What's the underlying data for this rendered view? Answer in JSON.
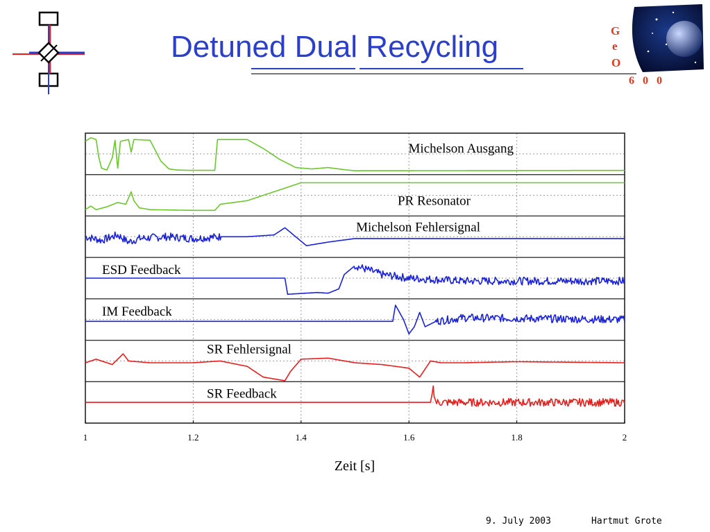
{
  "slide": {
    "title": "Detuned Dual Recycling",
    "footer_date": "9. July 2003",
    "footer_author": "Hartmut Grote",
    "colors": {
      "title": "#2b3fc8",
      "green": "#6cc62e",
      "blue": "#1a22d8",
      "red": "#e51e1e"
    }
  },
  "logo_geo": {
    "letters": [
      "G",
      "e",
      "O"
    ],
    "number": "6 0 0"
  },
  "logo_left": {
    "glyphs": [
      "",
      ""
    ]
  },
  "chart_data": {
    "type": "line",
    "xlabel": "Zeit [s]",
    "xlim": [
      1,
      2
    ],
    "x_ticks": [
      "1",
      "1.2",
      "1.4",
      "1.6",
      "1.8",
      "2"
    ],
    "grid": true,
    "series": [
      {
        "name": "Michelson Ausgang",
        "color": "#6cc62e",
        "label_anchor": "right",
        "points": [
          [
            1,
            0.85
          ],
          [
            1.01,
            0.95
          ],
          [
            1.02,
            0.9
          ],
          [
            1.025,
            0.4
          ],
          [
            1.03,
            0.1
          ],
          [
            1.04,
            0.05
          ],
          [
            1.05,
            0.4
          ],
          [
            1.055,
            0.88
          ],
          [
            1.06,
            0.1
          ],
          [
            1.065,
            0.85
          ],
          [
            1.08,
            0.9
          ],
          [
            1.085,
            0.55
          ],
          [
            1.09,
            0.9
          ],
          [
            1.12,
            0.88
          ],
          [
            1.14,
            0.3
          ],
          [
            1.155,
            0.08
          ],
          [
            1.17,
            0.05
          ],
          [
            1.2,
            0.04
          ],
          [
            1.24,
            0.04
          ],
          [
            1.245,
            0.9
          ],
          [
            1.3,
            0.9
          ],
          [
            1.33,
            0.65
          ],
          [
            1.36,
            0.35
          ],
          [
            1.39,
            0.12
          ],
          [
            1.42,
            0.08
          ],
          [
            1.45,
            0.12
          ],
          [
            1.48,
            0.06
          ],
          [
            1.5,
            0.03
          ],
          [
            2,
            0.04
          ]
        ]
      },
      {
        "name": "PR Resonator",
        "color": "#6cc62e",
        "label_anchor": "right",
        "points": [
          [
            1,
            0.1
          ],
          [
            1.01,
            0.2
          ],
          [
            1.02,
            0.1
          ],
          [
            1.04,
            0.18
          ],
          [
            1.06,
            0.3
          ],
          [
            1.075,
            0.25
          ],
          [
            1.085,
            0.6
          ],
          [
            1.09,
            0.35
          ],
          [
            1.1,
            0.15
          ],
          [
            1.12,
            0.1
          ],
          [
            1.2,
            0.08
          ],
          [
            1.24,
            0.08
          ],
          [
            1.25,
            0.25
          ],
          [
            1.3,
            0.35
          ],
          [
            1.35,
            0.6
          ],
          [
            1.38,
            0.75
          ],
          [
            1.4,
            0.85
          ],
          [
            1.45,
            0.85
          ],
          [
            2,
            0.85
          ]
        ]
      },
      {
        "name": "Michelson Fehlersignal",
        "color": "#1a22d8",
        "label_anchor": "right",
        "noisy_until": 1.25,
        "points": [
          [
            1,
            0.5
          ],
          [
            1.03,
            0.4
          ],
          [
            1.06,
            0.55
          ],
          [
            1.08,
            0.35
          ],
          [
            1.1,
            0.45
          ],
          [
            1.15,
            0.5
          ],
          [
            1.2,
            0.45
          ],
          [
            1.25,
            0.5
          ],
          [
            1.3,
            0.5
          ],
          [
            1.35,
            0.55
          ],
          [
            1.37,
            0.75
          ],
          [
            1.39,
            0.5
          ],
          [
            1.41,
            0.25
          ],
          [
            1.45,
            0.35
          ],
          [
            1.5,
            0.45
          ],
          [
            1.55,
            0.45
          ],
          [
            2,
            0.45
          ]
        ]
      },
      {
        "name": "ESD Feedback",
        "color": "#1a22d8",
        "label_anchor": "left",
        "noisy_from": 1.5,
        "points": [
          [
            1,
            0.5
          ],
          [
            1.37,
            0.5
          ],
          [
            1.375,
            0.05
          ],
          [
            1.43,
            0.1
          ],
          [
            1.45,
            0.08
          ],
          [
            1.47,
            0.2
          ],
          [
            1.48,
            0.6
          ],
          [
            1.5,
            0.85
          ],
          [
            1.52,
            0.75
          ],
          [
            1.55,
            0.6
          ],
          [
            1.6,
            0.5
          ],
          [
            1.7,
            0.42
          ],
          [
            2,
            0.42
          ]
        ]
      },
      {
        "name": "IM Feedback",
        "color": "#1a22d8",
        "label_anchor": "left",
        "noisy_from": 1.65,
        "points": [
          [
            1,
            0.45
          ],
          [
            1.57,
            0.45
          ],
          [
            1.575,
            0.9
          ],
          [
            1.59,
            0.5
          ],
          [
            1.6,
            0.1
          ],
          [
            1.61,
            0.3
          ],
          [
            1.62,
            0.7
          ],
          [
            1.63,
            0.3
          ],
          [
            1.65,
            0.45
          ],
          [
            1.7,
            0.55
          ],
          [
            2,
            0.5
          ]
        ]
      },
      {
        "name": "SR Fehlersignal",
        "color": "#e51e1e",
        "label_anchor": "left",
        "points": [
          [
            1,
            0.45
          ],
          [
            1.02,
            0.55
          ],
          [
            1.05,
            0.4
          ],
          [
            1.07,
            0.7
          ],
          [
            1.08,
            0.5
          ],
          [
            1.12,
            0.45
          ],
          [
            1.2,
            0.45
          ],
          [
            1.25,
            0.5
          ],
          [
            1.3,
            0.35
          ],
          [
            1.33,
            0.05
          ],
          [
            1.37,
            -0.05
          ],
          [
            1.38,
            0.2
          ],
          [
            1.4,
            0.55
          ],
          [
            1.45,
            0.58
          ],
          [
            1.5,
            0.45
          ],
          [
            1.55,
            0.4
          ],
          [
            1.6,
            0.3
          ],
          [
            1.62,
            0.05
          ],
          [
            1.64,
            0.5
          ],
          [
            1.66,
            0.45
          ],
          [
            1.7,
            0.45
          ],
          [
            1.8,
            0.48
          ],
          [
            2,
            0.45
          ]
        ]
      },
      {
        "name": "SR Feedback",
        "color": "#e51e1e",
        "label_anchor": "left",
        "noisy_from": 1.645,
        "points": [
          [
            1,
            0.5
          ],
          [
            1.64,
            0.5
          ],
          [
            1.645,
            0.9
          ],
          [
            1.65,
            0.5
          ],
          [
            2,
            0.5
          ]
        ]
      }
    ]
  }
}
